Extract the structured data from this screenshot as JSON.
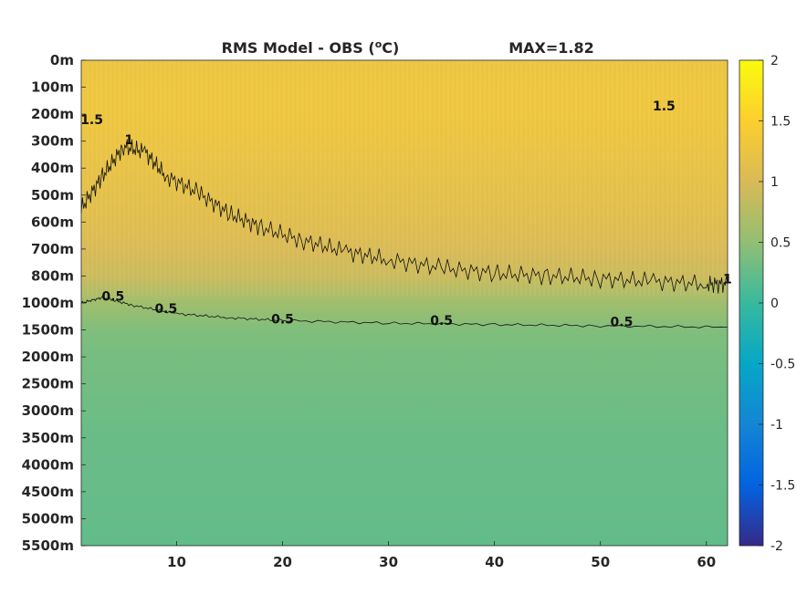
{
  "chart_data": {
    "type": "heatmap",
    "title": "RMS Model - OBS (",
    "title_sup": "o",
    "title_unit_suffix": "C)",
    "max_label": "MAX=1.82",
    "x_ticks": [
      "10",
      "20",
      "30",
      "40",
      "50",
      "60"
    ],
    "x_tick_values": [
      10,
      20,
      30,
      40,
      50,
      60
    ],
    "xlim": [
      1,
      62
    ],
    "y_ticks": [
      "0m",
      "100m",
      "200m",
      "300m",
      "400m",
      "500m",
      "600m",
      "700m",
      "800m",
      "1000m",
      "1500m",
      "2000m",
      "2500m",
      "3000m",
      "3500m",
      "4000m",
      "4500m",
      "5000m",
      "5500m"
    ],
    "colorbar": {
      "ticks": [
        "2",
        "1.5",
        "1",
        "0.5",
        "0",
        "-0.5",
        "-1",
        "-1.5",
        "-2"
      ],
      "tick_values": [
        2,
        1.5,
        1,
        0.5,
        0,
        -0.5,
        -1,
        -1.5,
        -2
      ],
      "clim": [
        -2,
        2
      ],
      "colormap": "parula"
    },
    "field_by_depth_index": [
      {
        "depth": "0m",
        "value": 1.25
      },
      {
        "depth": "100m",
        "value": 1.3
      },
      {
        "depth": "200m",
        "value": 1.3
      },
      {
        "depth": "300m",
        "value": 1.25
      },
      {
        "depth": "400m",
        "value": 1.2
      },
      {
        "depth": "500m",
        "value": 1.15
      },
      {
        "depth": "600m",
        "value": 1.1
      },
      {
        "depth": "700m",
        "value": 1.0
      },
      {
        "depth": "800m",
        "value": 0.9
      },
      {
        "depth": "1000m",
        "value": 0.6
      },
      {
        "depth": "1500m",
        "value": 0.4
      },
      {
        "depth": "2000m",
        "value": 0.35
      },
      {
        "depth": "2500m",
        "value": 0.33
      },
      {
        "depth": "3000m",
        "value": 0.3
      },
      {
        "depth": "3500m",
        "value": 0.28
      },
      {
        "depth": "4000m",
        "value": 0.27
      },
      {
        "depth": "4500m",
        "value": 0.26
      },
      {
        "depth": "5000m",
        "value": 0.25
      },
      {
        "depth": "5500m",
        "value": 0.23
      }
    ],
    "contours": [
      {
        "level": 1,
        "label": "1",
        "points": [
          [
            1,
            5.5
          ],
          [
            3,
            4.3
          ],
          [
            5,
            3.2
          ],
          [
            7,
            3.4
          ],
          [
            9,
            4.3
          ],
          [
            12,
            4.9
          ],
          [
            15,
            5.7
          ],
          [
            18,
            6.2
          ],
          [
            22,
            6.7
          ],
          [
            26,
            7.1
          ],
          [
            30,
            7.4
          ],
          [
            35,
            7.7
          ],
          [
            40,
            7.9
          ],
          [
            45,
            8.0
          ],
          [
            50,
            8.1
          ],
          [
            55,
            8.2
          ],
          [
            60,
            8.3
          ],
          [
            62,
            8.3
          ]
        ]
      },
      {
        "level": 0.5,
        "label": "0.5",
        "points": [
          [
            1,
            9.0
          ],
          [
            3,
            8.8
          ],
          [
            6,
            9.1
          ],
          [
            10,
            9.4
          ],
          [
            15,
            9.55
          ],
          [
            20,
            9.65
          ],
          [
            30,
            9.75
          ],
          [
            40,
            9.8
          ],
          [
            50,
            9.85
          ],
          [
            62,
            9.9
          ]
        ]
      }
    ],
    "contour_labels": [
      {
        "text": "0.5",
        "x": 4.0,
        "y": 8.75
      },
      {
        "text": "0.5",
        "x": 9.0,
        "y": 9.2
      },
      {
        "text": "0.5",
        "x": 20.0,
        "y": 9.6
      },
      {
        "text": "0.5",
        "x": 35.0,
        "y": 9.65
      },
      {
        "text": "0.5",
        "x": 52.0,
        "y": 9.7
      },
      {
        "text": "1",
        "x": 5.5,
        "y": 2.95
      },
      {
        "text": "1",
        "x": 62.0,
        "y": 8.1
      },
      {
        "text": "1.5",
        "x": 56.0,
        "y": 1.7
      },
      {
        "text": "1.5",
        "x": 2.0,
        "y": 2.2
      }
    ]
  }
}
